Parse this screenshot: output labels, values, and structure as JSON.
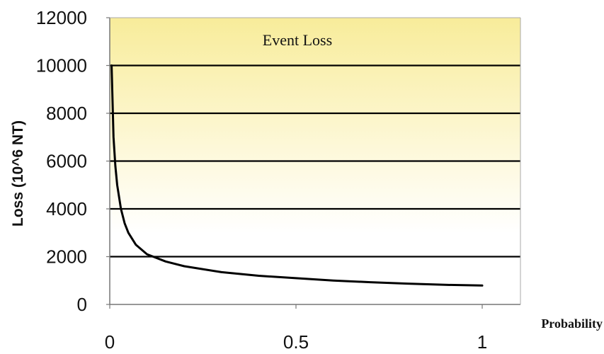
{
  "chart_data": {
    "type": "line",
    "title": "Event Loss",
    "xlabel": "Probability",
    "ylabel": "Loss (10^6 NT)",
    "xlim": [
      0,
      1.05
    ],
    "ylim": [
      0,
      12000
    ],
    "x_ticks": [
      "0",
      "0.5",
      "1"
    ],
    "y_ticks": [
      "0",
      "2000",
      "4000",
      "6000",
      "8000",
      "10000",
      "12000"
    ],
    "grid": true,
    "series": [
      {
        "x": [
          0.005,
          0.01,
          0.015,
          0.02,
          0.03,
          0.04,
          0.05,
          0.07,
          0.1,
          0.15,
          0.2,
          0.3,
          0.4,
          0.5,
          0.6,
          0.7,
          0.8,
          0.9,
          1.0
        ],
        "y": [
          10000,
          7000,
          5800,
          5000,
          4000,
          3400,
          3000,
          2500,
          2100,
          1800,
          1600,
          1350,
          1200,
          1100,
          1000,
          930,
          870,
          820,
          790
        ]
      }
    ],
    "colors": {
      "background_top": "#f8ec9a",
      "background_bottom": "#ffffff",
      "line": "#000000"
    }
  }
}
